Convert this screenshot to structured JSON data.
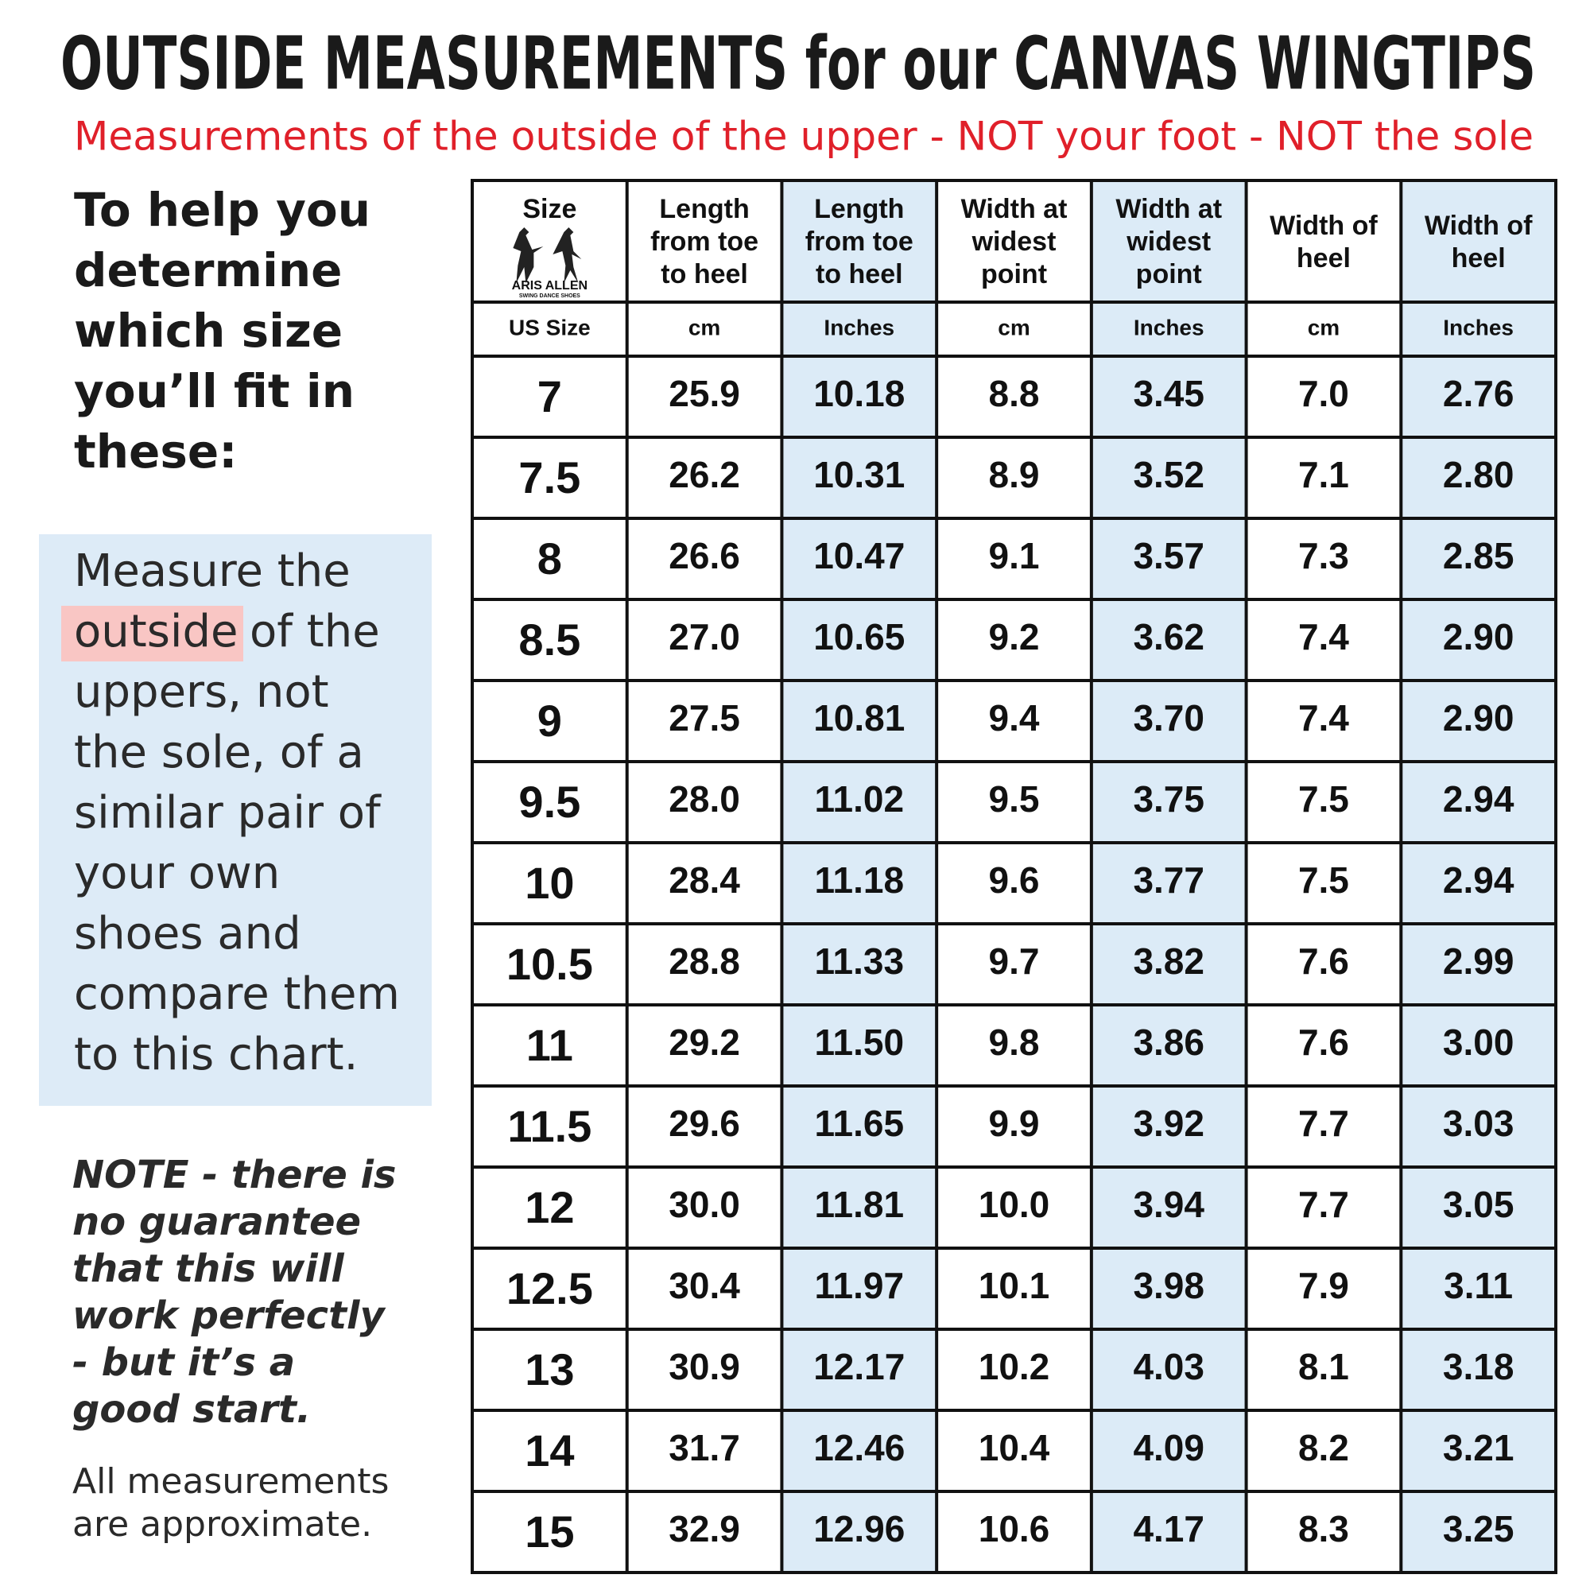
{
  "header": {
    "title": "OUTSIDE MEASUREMENTS for our CANVAS WINGTIPS",
    "subtitle": "Measurements of the outside of the upper - NOT your foot - NOT the sole"
  },
  "sidebar": {
    "heading": [
      "To help you",
      "determine",
      "which size",
      "you’ll fit in",
      "these:"
    ],
    "instruction": {
      "start": "Measure the",
      "highlight": "outside",
      "after_highlight": "of the",
      "lines": [
        "uppers, not",
        "the sole, of a",
        "similar pair of",
        "your own",
        "shoes and",
        "compare them",
        "to this chart."
      ]
    },
    "note": [
      "NOTE - there is",
      "no guarantee",
      "that this will",
      "work perfectly",
      "- but it’s a",
      "good start."
    ],
    "disclaimer": [
      "All measurements",
      "are approximate."
    ]
  },
  "logo": {
    "name": "ARIS ALLEN",
    "tagline": "SWING DANCE SHOES"
  },
  "table": {
    "header": [
      [
        "Size"
      ],
      [
        "Length",
        "from toe",
        "to heel"
      ],
      [
        "Length",
        "from toe",
        "to heel"
      ],
      [
        "Width at",
        "widest",
        "point"
      ],
      [
        "Width at",
        "widest",
        "point"
      ],
      [
        "Width of",
        "heel"
      ],
      [
        "Width of",
        "heel"
      ]
    ],
    "units": [
      "US Size",
      "cm",
      "Inches",
      "cm",
      "Inches",
      "cm",
      "Inches"
    ],
    "rows": [
      [
        "7",
        "25.9",
        "10.18",
        "8.8",
        "3.45",
        "7.0",
        "2.76"
      ],
      [
        "7.5",
        "26.2",
        "10.31",
        "8.9",
        "3.52",
        "7.1",
        "2.80"
      ],
      [
        "8",
        "26.6",
        "10.47",
        "9.1",
        "3.57",
        "7.3",
        "2.85"
      ],
      [
        "8.5",
        "27.0",
        "10.65",
        "9.2",
        "3.62",
        "7.4",
        "2.90"
      ],
      [
        "9",
        "27.5",
        "10.81",
        "9.4",
        "3.70",
        "7.4",
        "2.90"
      ],
      [
        "9.5",
        "28.0",
        "11.02",
        "9.5",
        "3.75",
        "7.5",
        "2.94"
      ],
      [
        "10",
        "28.4",
        "11.18",
        "9.6",
        "3.77",
        "7.5",
        "2.94"
      ],
      [
        "10.5",
        "28.8",
        "11.33",
        "9.7",
        "3.82",
        "7.6",
        "2.99"
      ],
      [
        "11",
        "29.2",
        "11.50",
        "9.8",
        "3.86",
        "7.6",
        "3.00"
      ],
      [
        "11.5",
        "29.6",
        "11.65",
        "9.9",
        "3.92",
        "7.7",
        "3.03"
      ],
      [
        "12",
        "30.0",
        "11.81",
        "10.0",
        "3.94",
        "7.7",
        "3.05"
      ],
      [
        "12.5",
        "30.4",
        "11.97",
        "10.1",
        "3.98",
        "7.9",
        "3.11"
      ],
      [
        "13",
        "30.9",
        "12.17",
        "10.2",
        "4.03",
        "8.1",
        "3.18"
      ],
      [
        "14",
        "31.7",
        "12.46",
        "10.4",
        "4.09",
        "8.2",
        "3.21"
      ],
      [
        "15",
        "32.9",
        "12.96",
        "10.6",
        "4.17",
        "8.3",
        "3.25"
      ]
    ]
  }
}
